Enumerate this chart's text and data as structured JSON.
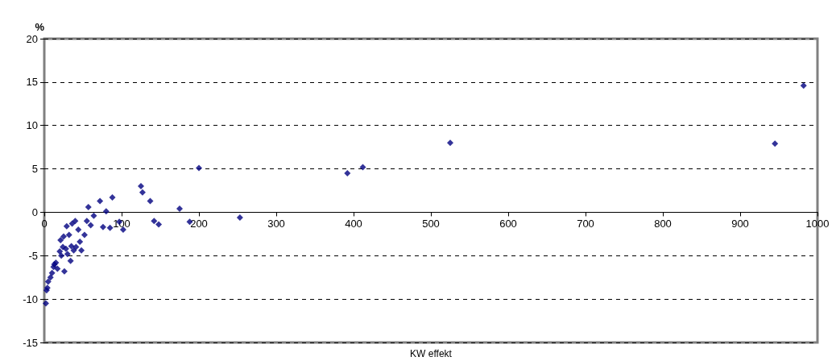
{
  "chart_data": {
    "type": "scatter",
    "xlabel": "KW effekt",
    "ylabel": "%",
    "x": [
      2,
      3,
      4,
      5,
      8,
      10,
      12,
      13,
      15,
      17,
      20,
      21,
      22,
      24,
      25,
      26,
      28,
      29,
      30,
      32,
      34,
      35,
      36,
      38,
      40,
      41,
      44,
      46,
      48,
      52,
      55,
      57,
      60,
      64,
      72,
      76,
      80,
      85,
      88,
      97,
      102,
      125,
      127,
      137,
      142,
      148,
      175,
      188,
      200,
      253,
      392,
      412,
      525,
      945,
      982
    ],
    "values": [
      -10.5,
      -9,
      -8.7,
      -8,
      -7.5,
      -7,
      -6.3,
      -6,
      -5.8,
      -6.5,
      -4.5,
      -3.2,
      -5,
      -4,
      -2.8,
      -6.8,
      -4.2,
      -1.6,
      -4.8,
      -2.6,
      -5.6,
      -3.9,
      -1.3,
      -4.4,
      -1,
      -4,
      -2,
      -3.4,
      -4.4,
      -2.6,
      -1,
      0.6,
      -1.5,
      -0.4,
      1.3,
      -1.7,
      0.1,
      -1.8,
      1.7,
      -1.1,
      -2,
      3,
      2.3,
      1.3,
      -1,
      -1.4,
      0.4,
      -1.1,
      5.1,
      -0.6,
      4.5,
      5.2,
      8,
      7.9,
      14.6
    ],
    "color": "#000080",
    "marker": "diamond",
    "xlim": [
      0,
      1000
    ],
    "xticks": [
      0,
      100,
      200,
      300,
      400,
      500,
      600,
      700,
      800,
      900,
      1000
    ],
    "ylim": [
      -15,
      20
    ],
    "yticks": [
      -15,
      -10,
      -5,
      0,
      5,
      10,
      15,
      20
    ],
    "grid": "y"
  }
}
